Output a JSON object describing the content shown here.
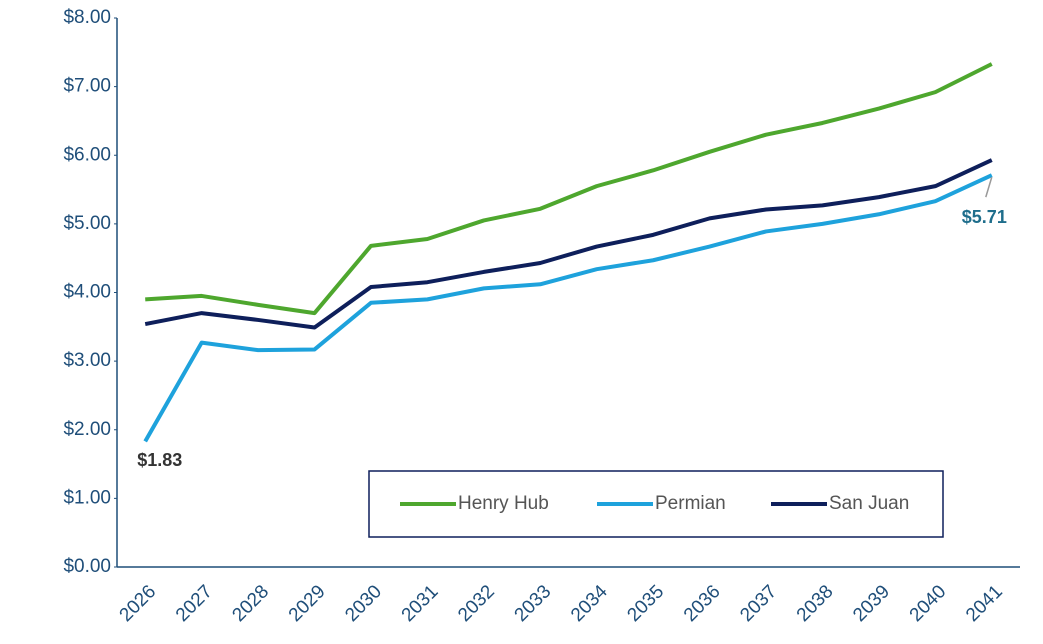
{
  "chart_data": {
    "type": "line",
    "categories": [
      "2026",
      "2027",
      "2028",
      "2029",
      "2030",
      "2031",
      "2032",
      "2033",
      "2034",
      "2035",
      "2036",
      "2037",
      "2038",
      "2039",
      "2040",
      "2041"
    ],
    "series": [
      {
        "name": "Henry Hub",
        "color": "#4ea72e",
        "values": [
          3.9,
          3.95,
          3.82,
          3.7,
          4.68,
          4.78,
          5.05,
          5.22,
          5.55,
          5.78,
          6.05,
          6.3,
          6.47,
          6.68,
          6.92,
          7.33
        ]
      },
      {
        "name": "Permian",
        "color": "#1ea2dc",
        "values": [
          1.83,
          3.27,
          3.16,
          3.17,
          3.85,
          3.9,
          4.06,
          4.12,
          4.34,
          4.47,
          4.67,
          4.89,
          5.0,
          5.14,
          5.33,
          5.71
        ]
      },
      {
        "name": "San Juan",
        "color": "#0e1f5b",
        "values": [
          3.54,
          3.7,
          3.6,
          3.49,
          4.08,
          4.15,
          4.3,
          4.43,
          4.67,
          4.84,
          5.08,
          5.21,
          5.27,
          5.39,
          5.55,
          5.93
        ]
      }
    ],
    "ylim": [
      0,
      8
    ],
    "yticks": [
      {
        "value": 0,
        "label": "$0.00"
      },
      {
        "value": 1,
        "label": "$1.00"
      },
      {
        "value": 2,
        "label": "$2.00"
      },
      {
        "value": 3,
        "label": "$3.00"
      },
      {
        "value": 4,
        "label": "$4.00"
      },
      {
        "value": 5,
        "label": "$5.00"
      },
      {
        "value": 6,
        "label": "$6.00"
      },
      {
        "value": 7,
        "label": "$7.00"
      },
      {
        "value": 8,
        "label": "$8.00"
      }
    ],
    "annotations": [
      {
        "text": "$1.83"
      },
      {
        "text": "$5.71"
      }
    ],
    "legend": "lower right"
  }
}
